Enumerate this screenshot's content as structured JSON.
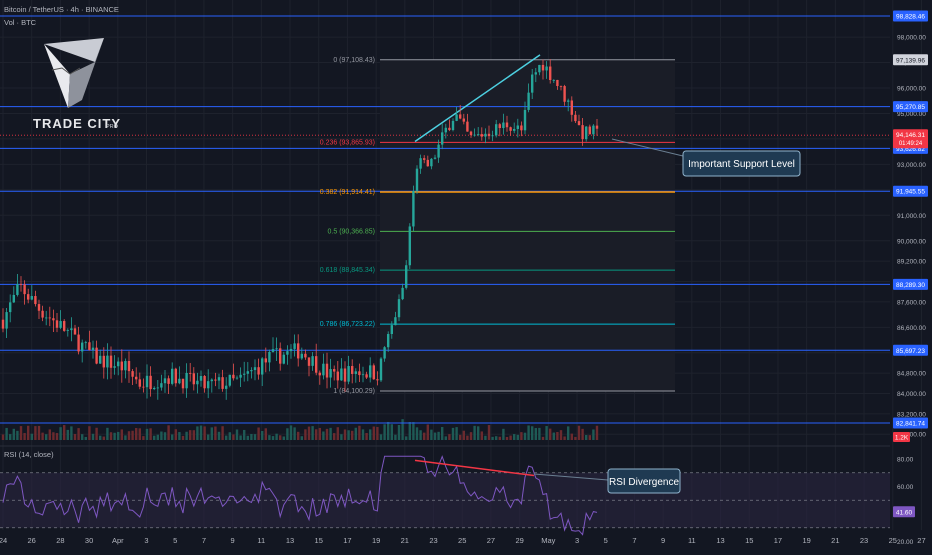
{
  "header": {
    "symbol": "Bitcoin / TetherUS · 4h · BINANCE",
    "volume_label": "Vol · BTC"
  },
  "logo": {
    "brand": "TRADE CITY",
    "suffix": "PRO"
  },
  "rsi": {
    "label": "RSI (14, close)",
    "current_value": "41.60",
    "levels": [
      "80.00",
      "60.00",
      "40.00",
      "20.00"
    ]
  },
  "annotations": {
    "support": "Important Support Level",
    "divergence": "RSI Divergence"
  },
  "colors": {
    "background": "#131722",
    "up": "#26a69a",
    "down": "#ef5350",
    "line_blue": "#2962ff",
    "fib_orange": "#ff9800",
    "rsi_line": "#7e57c2",
    "rsi_zone": "#2a2540",
    "callout_fill": "#1f3a52",
    "divergence_price": "#4dd0e1",
    "divergence_rsi": "#f23645"
  },
  "chart_data": {
    "type": "candlestick",
    "timeframe": "4h",
    "price_axis_ticks": [
      "98,000.00",
      "97,000.00",
      "96,000.00",
      "95,000.00",
      "94,000.00",
      "93,000.00",
      "92,000.00",
      "91,000.00",
      "90,000.00",
      "89,200.00",
      "88,400.00",
      "87,600.00",
      "86,600.00",
      "85,600.00",
      "84,800.00",
      "84,000.00",
      "83,200.00",
      "82,400.00"
    ],
    "x_axis_ticks": [
      "24",
      "26",
      "28",
      "30",
      "Apr",
      "3",
      "5",
      "7",
      "9",
      "11",
      "13",
      "15",
      "17",
      "19",
      "21",
      "23",
      "25",
      "27",
      "29",
      "May",
      "3",
      "5",
      "7",
      "9",
      "11",
      "13",
      "15",
      "17",
      "19",
      "21",
      "23",
      "25",
      "27"
    ],
    "horizontal_levels": [
      {
        "price": 98828.46,
        "label": "98,828.46"
      },
      {
        "price": 95270.85,
        "label": "95,270.85"
      },
      {
        "price": 93626.82,
        "label": "93,626.82"
      },
      {
        "price": 91945.55,
        "label": "91,945.55"
      },
      {
        "price": 88289.3,
        "label": "88,289.30"
      },
      {
        "price": 85697.23,
        "label": "85,697.23"
      },
      {
        "price": 82841.74,
        "label": "82,841.74"
      }
    ],
    "fibonacci": [
      {
        "ratio": "0",
        "price": 97108.43,
        "label": "0 (97,108.43)",
        "axis_label": "97,139.96"
      },
      {
        "ratio": "0.236",
        "price": 93865.93,
        "label": "0.236 (93,865.93)"
      },
      {
        "ratio": "0.382",
        "price": 91914.41,
        "label": "0.382 (91,914.41)"
      },
      {
        "ratio": "0.5",
        "price": 90366.85,
        "label": "0.5 (90,366.85)"
      },
      {
        "ratio": "0.618",
        "price": 88845.34,
        "label": "0.618 (88,845.34)"
      },
      {
        "ratio": "0.786",
        "price": 86723.22,
        "label": "0.786 (86,723.22)"
      },
      {
        "ratio": "1",
        "price": 84100.29,
        "label": "1 (84,100.29)"
      }
    ],
    "current_price": {
      "price": 94146.31,
      "label": "94,146.31",
      "countdown": "01:49:24"
    },
    "volume_label": "1.2K",
    "rsi_divergence": true
  }
}
